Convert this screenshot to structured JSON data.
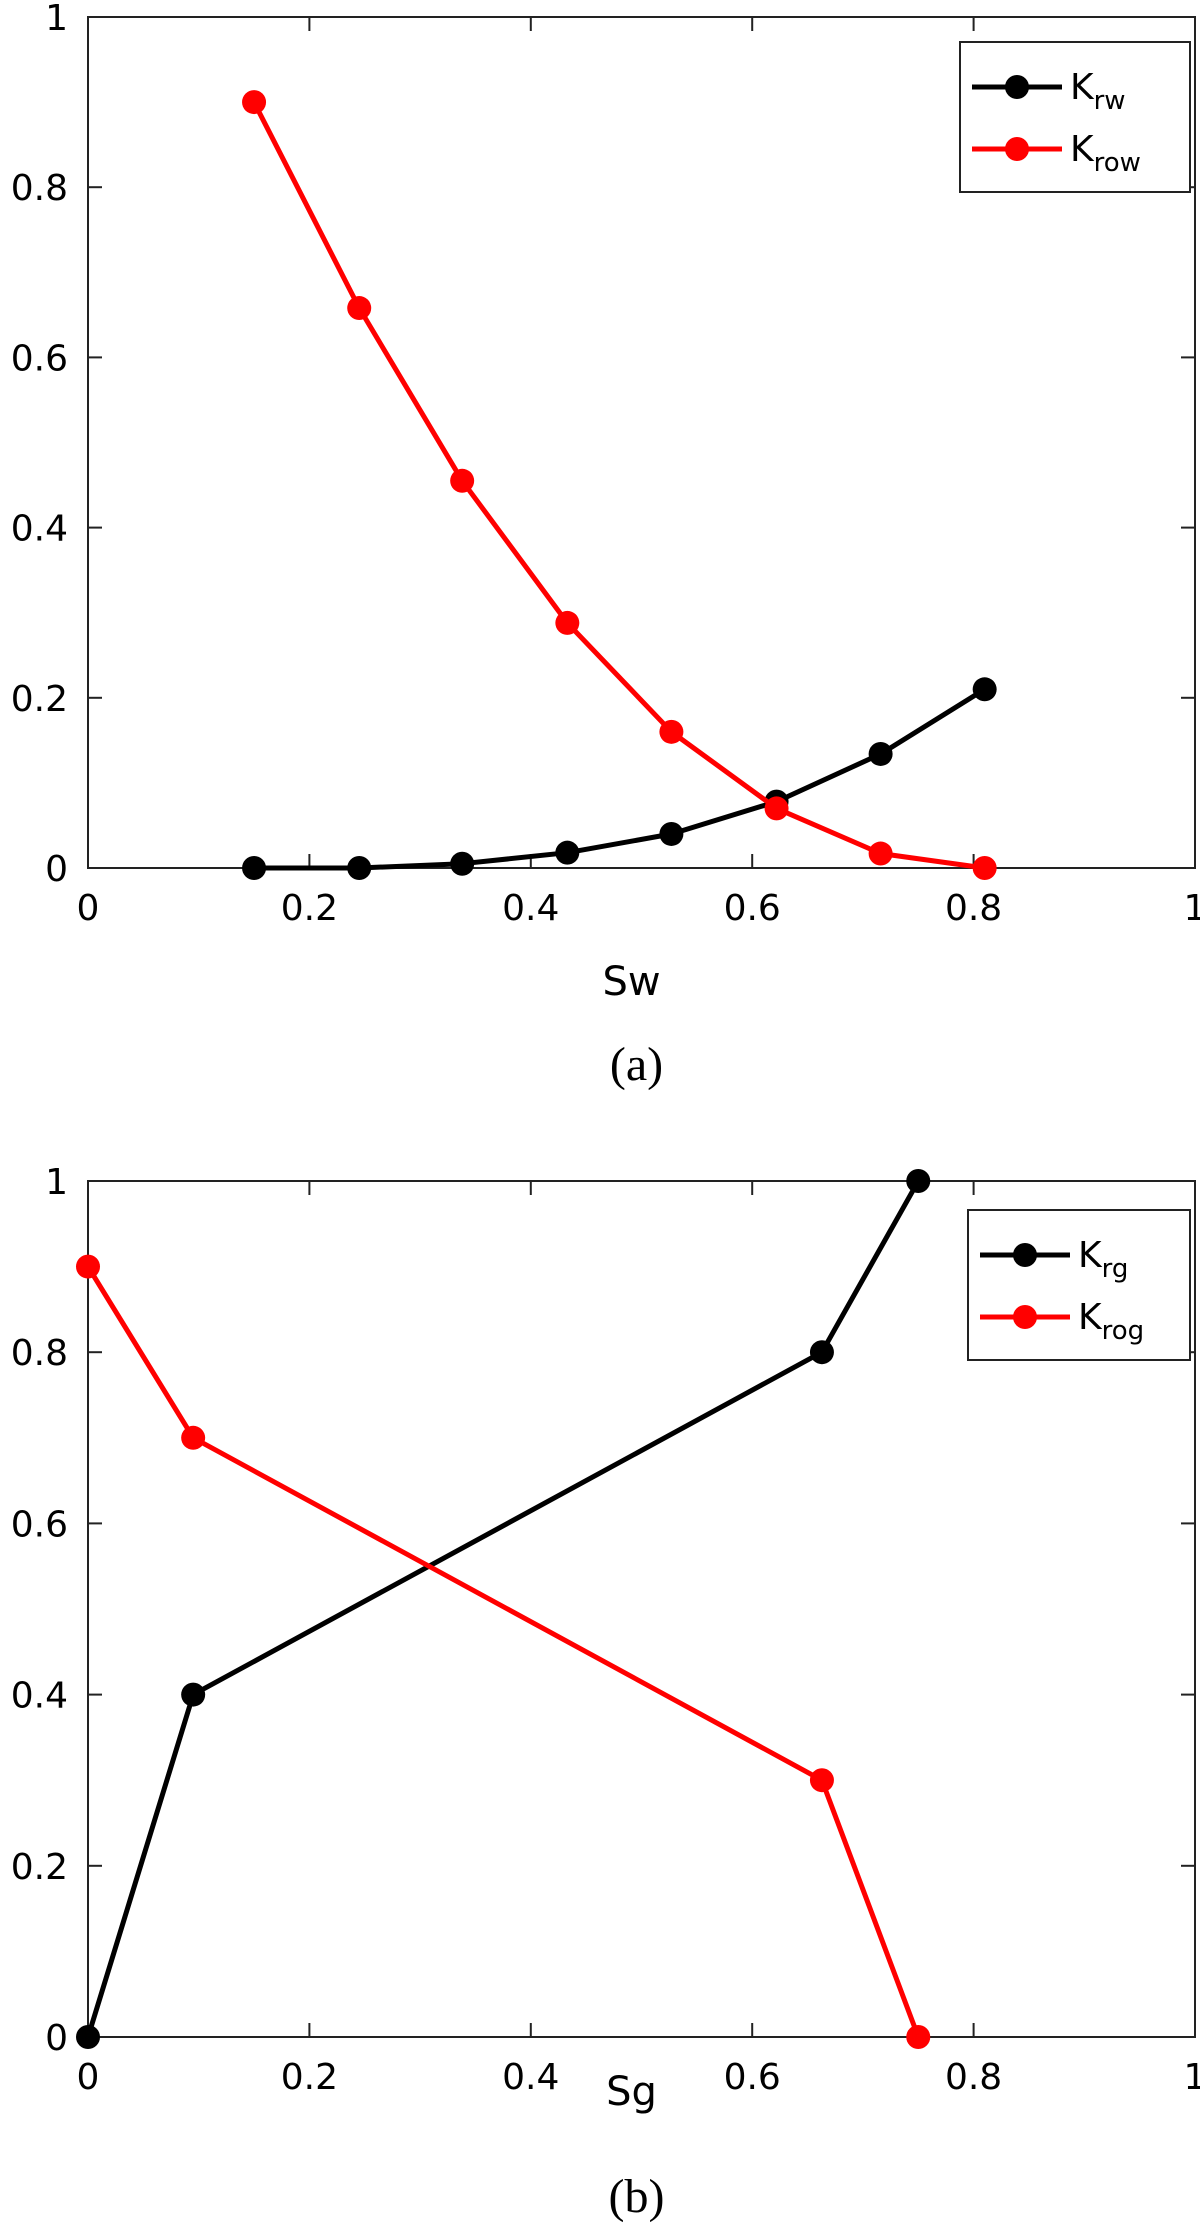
{
  "chart_data": [
    {
      "type": "line",
      "caption": "(a)",
      "xlabel": "Sw",
      "ylabel": "",
      "xlim": [
        0,
        1
      ],
      "ylim": [
        0,
        1
      ],
      "xticks": [
        "0",
        "0.2",
        "0.4",
        "0.6",
        "0.8",
        "1"
      ],
      "yticks": [
        "0",
        "0.2",
        "0.4",
        "0.6",
        "0.8",
        "1"
      ],
      "grid": false,
      "legend_position": "top-right",
      "series": [
        {
          "name": "K",
          "name_sub": "rw",
          "color": "#000000",
          "x": [
            0.15,
            0.245,
            0.338,
            0.433,
            0.527,
            0.622,
            0.716,
            0.81
          ],
          "y": [
            0.0,
            0.0,
            0.005,
            0.018,
            0.04,
            0.078,
            0.134,
            0.21
          ]
        },
        {
          "name": "K",
          "name_sub": "row",
          "color": "#ff0000",
          "x": [
            0.15,
            0.245,
            0.338,
            0.433,
            0.527,
            0.622,
            0.716,
            0.81
          ],
          "y": [
            0.9,
            0.658,
            0.455,
            0.288,
            0.16,
            0.07,
            0.017,
            0.0
          ]
        }
      ]
    },
    {
      "type": "line",
      "caption": "(b)",
      "xlabel": "Sg",
      "ylabel": "",
      "xlim": [
        0,
        1
      ],
      "ylim": [
        0,
        1
      ],
      "xticks": [
        "0",
        "0.2",
        "0.4",
        "0.6",
        "0.8",
        "1"
      ],
      "yticks": [
        "0",
        "0.2",
        "0.4",
        "0.6",
        "0.8",
        "1"
      ],
      "grid": false,
      "legend_position": "top-right",
      "series": [
        {
          "name": "K",
          "name_sub": "rg",
          "color": "#000000",
          "x": [
            0.0,
            0.095,
            0.663,
            0.75
          ],
          "y": [
            0.0,
            0.4,
            0.8,
            1.0
          ]
        },
        {
          "name": "K",
          "name_sub": "rog",
          "color": "#ff0000",
          "x": [
            0.0,
            0.095,
            0.663,
            0.75
          ],
          "y": [
            0.9,
            0.7,
            0.3,
            0.0
          ]
        }
      ]
    }
  ]
}
